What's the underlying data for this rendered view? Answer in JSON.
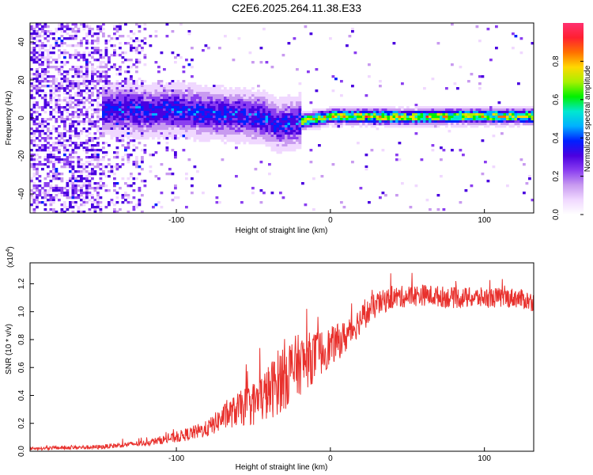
{
  "title": "C2E6.2025.264.11.38.E33",
  "chart_data": [
    {
      "type": "heatmap",
      "name": "spectrogram",
      "xlabel": "Height of straight line (km)",
      "ylabel": "Frequency (Hz)",
      "xlim": [
        -195,
        132
      ],
      "ylim": [
        -50,
        50
      ],
      "xticks": [
        -100,
        0,
        100
      ],
      "yticks": [
        -40,
        -20,
        0,
        20,
        40
      ],
      "colorbar": {
        "label": "Normalized spectral amplitude",
        "range": [
          0.0,
          1.0
        ],
        "ticks": [
          "0.0",
          "0.2",
          "0.4",
          "0.6",
          "0.8"
        ],
        "colormap": [
          "#ffffff",
          "#f0d8ff",
          "#c89af0",
          "#8a3ef0",
          "#4a00e0",
          "#0020ff",
          "#00b0ff",
          "#00e8d0",
          "#00f000",
          "#a8f000",
          "#ffd800",
          "#ff7000",
          "#ff2030",
          "#ff3070"
        ]
      },
      "signal_track": [
        {
          "x": -140,
          "y": 5
        },
        {
          "x": -120,
          "y": 4
        },
        {
          "x": -100,
          "y": 5
        },
        {
          "x": -80,
          "y": 3
        },
        {
          "x": -60,
          "y": 2
        },
        {
          "x": -45,
          "y": 1
        },
        {
          "x": -35,
          "y": -3
        },
        {
          "x": -25,
          "y": -2
        },
        {
          "x": -10,
          "y": 0
        },
        {
          "x": 0,
          "y": 1.5
        },
        {
          "x": 20,
          "y": 1.5
        },
        {
          "x": 50,
          "y": 1
        },
        {
          "x": 80,
          "y": 1.5
        },
        {
          "x": 110,
          "y": 1.5
        },
        {
          "x": 132,
          "y": 1.5
        }
      ]
    },
    {
      "type": "line",
      "name": "snr",
      "xlabel": "Height of straight line (km)",
      "ylabel": "SNR (10 * v/v)",
      "scale_note_base": "(x10",
      "scale_note_exp": "4",
      "scale_note_close": ")",
      "xlim": [
        -195,
        132
      ],
      "ylim": [
        0,
        1.35
      ],
      "xticks": [
        -100,
        0,
        100
      ],
      "yticks": [
        0.0,
        0.2,
        0.4,
        0.6,
        0.8,
        1.0,
        1.2
      ],
      "ytick_labels": [
        "0.0",
        "0.2",
        "0.4",
        "0.6",
        "0.8",
        "1.0",
        "1.2"
      ],
      "color": "#e8302c",
      "trend": [
        {
          "x": -195,
          "y": 0.02
        },
        {
          "x": -150,
          "y": 0.03
        },
        {
          "x": -120,
          "y": 0.06
        },
        {
          "x": -100,
          "y": 0.1
        },
        {
          "x": -80,
          "y": 0.16
        },
        {
          "x": -70,
          "y": 0.24
        },
        {
          "x": -60,
          "y": 0.3
        },
        {
          "x": -50,
          "y": 0.34
        },
        {
          "x": -40,
          "y": 0.42
        },
        {
          "x": -30,
          "y": 0.55
        },
        {
          "x": -20,
          "y": 0.62
        },
        {
          "x": -10,
          "y": 0.68
        },
        {
          "x": 0,
          "y": 0.75
        },
        {
          "x": 10,
          "y": 0.82
        },
        {
          "x": 20,
          "y": 0.95
        },
        {
          "x": 30,
          "y": 1.05
        },
        {
          "x": 40,
          "y": 1.1
        },
        {
          "x": 60,
          "y": 1.12
        },
        {
          "x": 80,
          "y": 1.1
        },
        {
          "x": 100,
          "y": 1.1
        },
        {
          "x": 120,
          "y": 1.1
        },
        {
          "x": 132,
          "y": 1.07
        }
      ],
      "noise_amplitude": [
        {
          "x": -195,
          "y": 0.01
        },
        {
          "x": -120,
          "y": 0.02
        },
        {
          "x": -80,
          "y": 0.06
        },
        {
          "x": -60,
          "y": 0.12
        },
        {
          "x": -40,
          "y": 0.2
        },
        {
          "x": -30,
          "y": 0.26
        },
        {
          "x": -20,
          "y": 0.22
        },
        {
          "x": 0,
          "y": 0.14
        },
        {
          "x": 20,
          "y": 0.1
        },
        {
          "x": 40,
          "y": 0.08
        },
        {
          "x": 132,
          "y": 0.07
        }
      ]
    }
  ]
}
